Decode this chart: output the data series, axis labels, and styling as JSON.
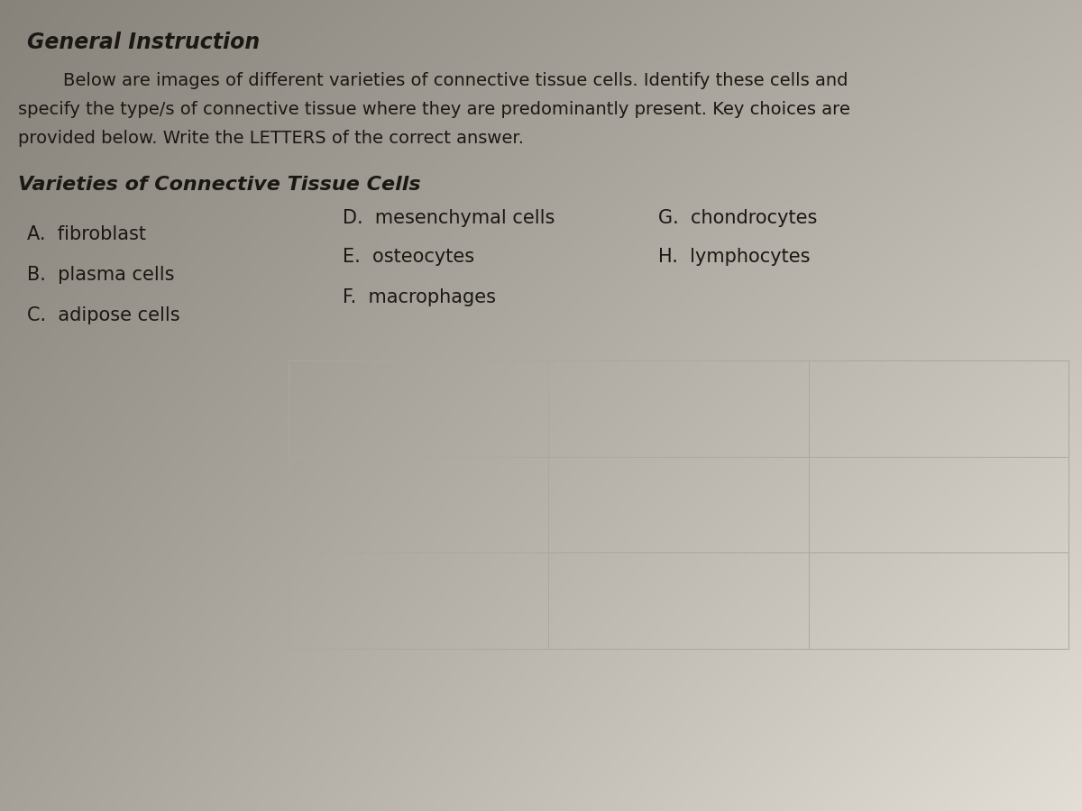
{
  "bg_base": "#b8b4ac",
  "page_light": "#d8d4cc",
  "page_dark_left": "#8a8880",
  "text_color": "#1a1814",
  "title": "General Instruction",
  "instr1": "Below are images of different varieties of connective tissue cells. Identify these cells and",
  "instr2": "specify the type/s of connective tissue where they are predominantly present. Key choices are",
  "instr3": "provided below. Write the LETTERS of the correct answer.",
  "section_title": "Varieties of Connective Tissue Cells",
  "col1_items": [
    "A.  fibroblast",
    "B.  plasma cells",
    "C.  adipose cells"
  ],
  "col2_items": [
    "D.  mesenchymal cells",
    "E.  osteocytes",
    "F.  macrophages"
  ],
  "col3_items": [
    "G.  chondrocytes",
    "H.  lymphocytes"
  ],
  "title_fontsize": 17,
  "body_fontsize": 14,
  "section_fontsize": 16,
  "item_fontsize": 15,
  "grid_color": "#aaa8a0",
  "grid_linewidth": 0.7
}
